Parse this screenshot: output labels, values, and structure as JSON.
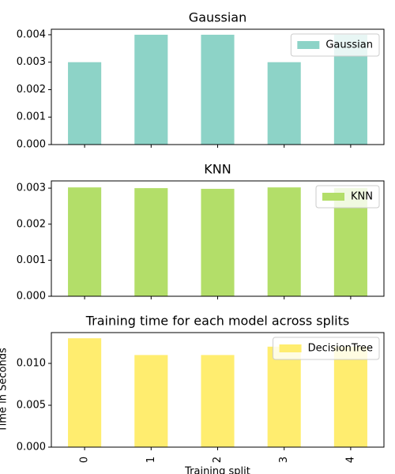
{
  "chart_data": [
    {
      "type": "bar",
      "title": "Gaussian",
      "categories": [
        null,
        null,
        null,
        null,
        null
      ],
      "series": [
        {
          "name": "Gaussian",
          "color": "#8dd3c7",
          "values": [
            0.003,
            0.004,
            0.004,
            0.003,
            0.004
          ]
        }
      ],
      "ylim": [
        0,
        0.0042
      ],
      "yticks": [
        {
          "value": 0,
          "label": "0.000"
        },
        {
          "value": 0.001,
          "label": "0.001"
        },
        {
          "value": 0.002,
          "label": "0.002"
        },
        {
          "value": 0.003,
          "label": "0.003"
        },
        {
          "value": 0.004,
          "label": "0.004"
        }
      ],
      "legend": "upper right"
    },
    {
      "type": "bar",
      "title": "KNN",
      "categories": [
        null,
        null,
        null,
        null,
        null
      ],
      "series": [
        {
          "name": "KNN",
          "color": "#b3de69",
          "values": [
            0.00302,
            0.003,
            0.00298,
            0.00302,
            0.003
          ]
        }
      ],
      "ylim": [
        0,
        0.0032
      ],
      "yticks": [
        {
          "value": 0,
          "label": "0.000"
        },
        {
          "value": 0.001,
          "label": "0.001"
        },
        {
          "value": 0.002,
          "label": "0.002"
        },
        {
          "value": 0.003,
          "label": "0.003"
        }
      ],
      "legend": "upper right"
    },
    {
      "type": "bar",
      "title": "Training time for each model across splits",
      "categories": [
        "0",
        "1",
        "2",
        "3",
        "4"
      ],
      "series": [
        {
          "name": "DecisionTree",
          "color": "#ffed6f",
          "values": [
            0.013,
            0.011,
            0.011,
            0.012,
            0.012
          ]
        }
      ],
      "ylim": [
        0,
        0.01368
      ],
      "yticks": [
        {
          "value": 0,
          "label": "0.000"
        },
        {
          "value": 0.005,
          "label": "0.005"
        },
        {
          "value": 0.01,
          "label": "0.010"
        }
      ],
      "xlabel": "Training split",
      "ylabel": "Time in Seconds",
      "legend": "upper right"
    }
  ]
}
